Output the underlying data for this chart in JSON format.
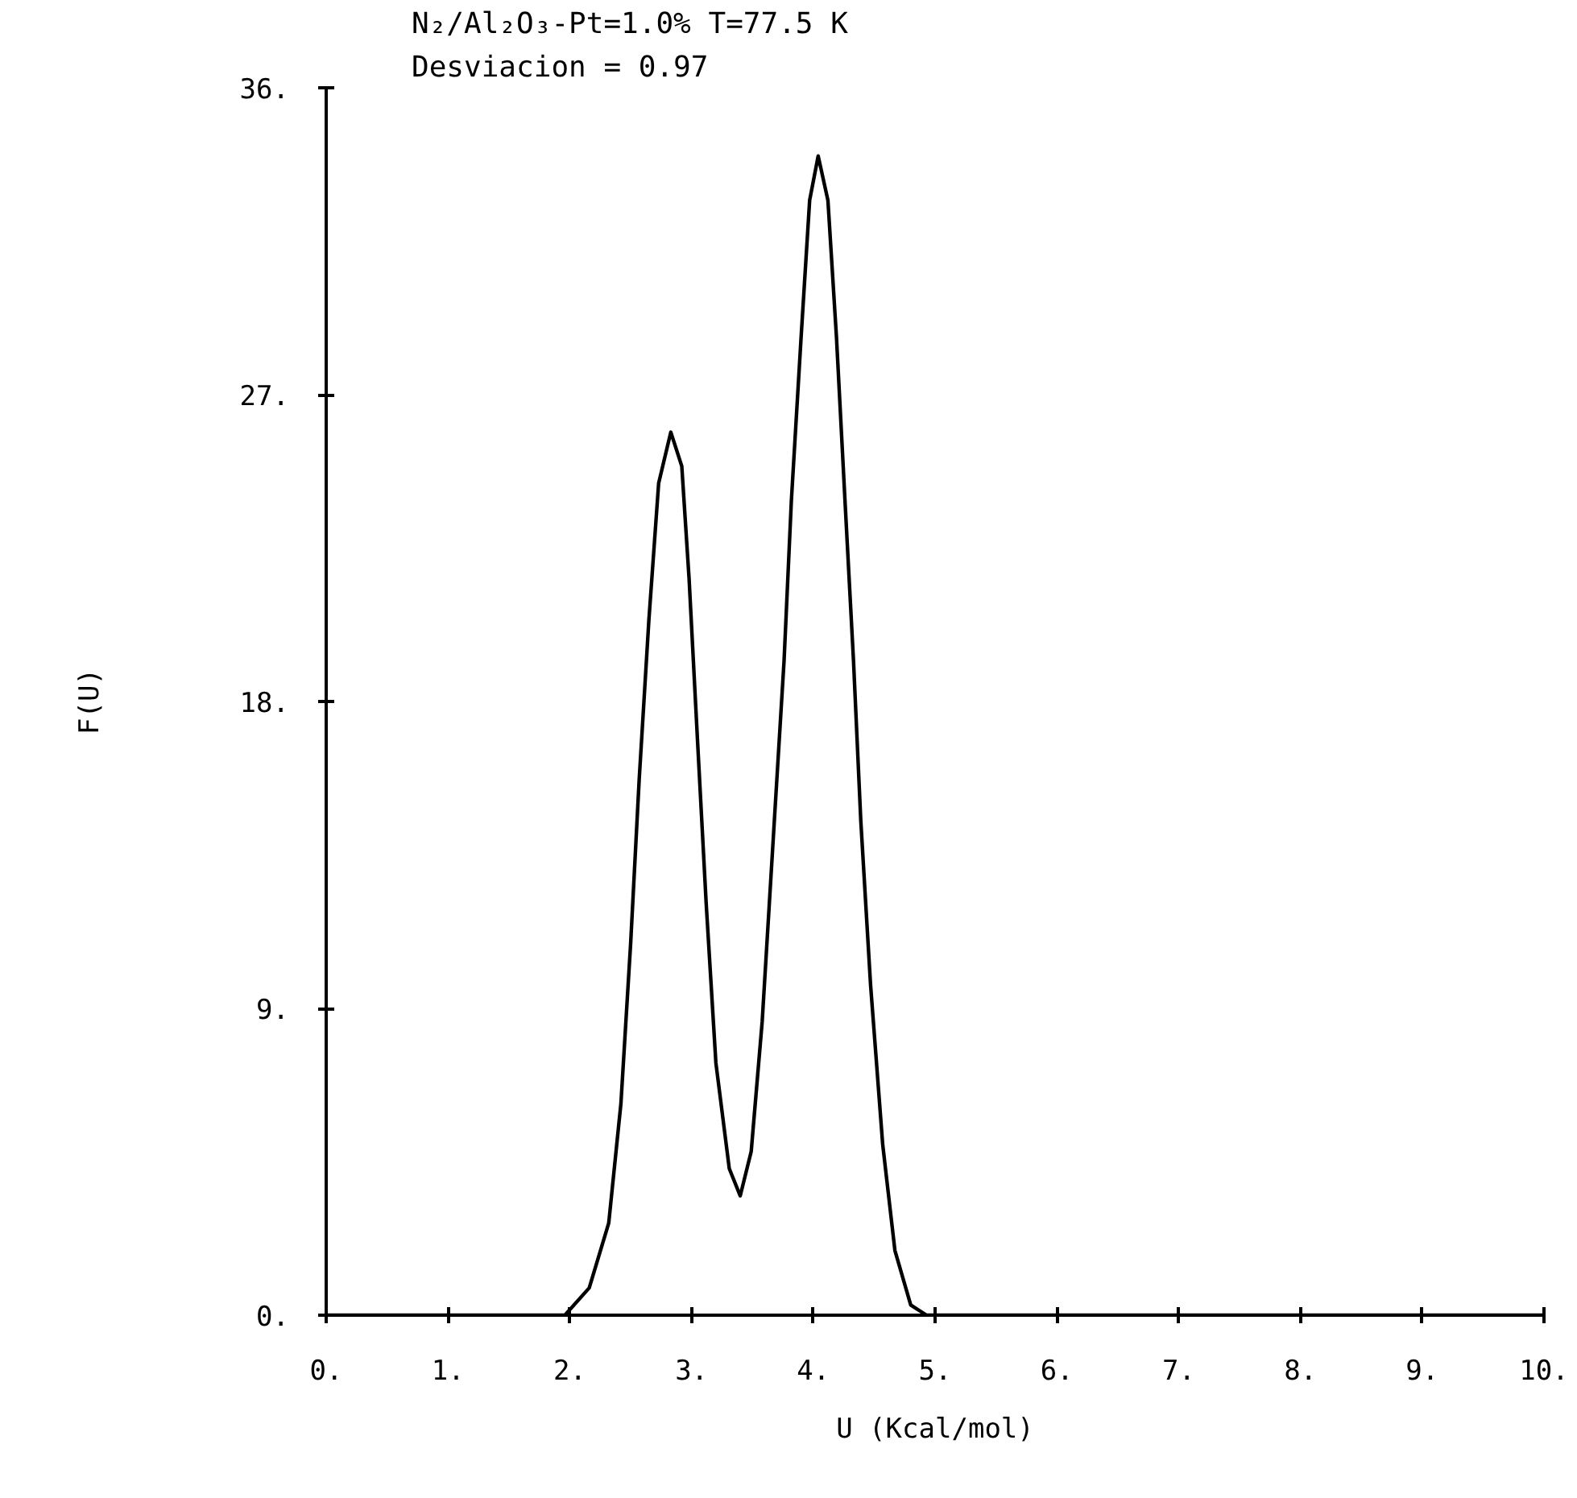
{
  "chart_data": {
    "type": "line",
    "title": "N₂/Al₂O₃-Pt=1.0% T=77.5 K",
    "annotations": [
      "Desviacion = 0.97"
    ],
    "xlabel": "U (Kcal/mol)",
    "ylabel": "F(U)",
    "xlim": [
      0,
      10
    ],
    "ylim": [
      0,
      36
    ],
    "xticks": [
      {
        "value": 0,
        "label": "0."
      },
      {
        "value": 1,
        "label": "1."
      },
      {
        "value": 2,
        "label": "2."
      },
      {
        "value": 3,
        "label": "3."
      },
      {
        "value": 4,
        "label": "4."
      },
      {
        "value": 5,
        "label": "5."
      },
      {
        "value": 6,
        "label": "6."
      },
      {
        "value": 7,
        "label": "7."
      },
      {
        "value": 8,
        "label": "8."
      },
      {
        "value": 9,
        "label": "9."
      },
      {
        "value": 10,
        "label": "10."
      }
    ],
    "yticks": [
      {
        "value": 0,
        "label": "0."
      },
      {
        "value": 9,
        "label": "9."
      },
      {
        "value": 18,
        "label": "18."
      },
      {
        "value": 27,
        "label": "27."
      },
      {
        "value": 36,
        "label": "36."
      }
    ],
    "grid": false,
    "marker": "none",
    "line_style": "solid",
    "series": [
      {
        "color": "#000000",
        "x": [
          0,
          1.96,
          2.16,
          2.32,
          2.42,
          2.5,
          2.57,
          2.65,
          2.73,
          2.83,
          2.92,
          2.98,
          3.05,
          3.12,
          3.2,
          3.31,
          3.4,
          3.49,
          3.58,
          3.68,
          3.76,
          3.82,
          3.9,
          3.97,
          4.04,
          4.12,
          4.19,
          4.26,
          4.33,
          4.39,
          4.47,
          4.57,
          4.67,
          4.8,
          4.93,
          10
        ],
        "values": [
          0,
          0,
          0.8,
          2.7,
          6.2,
          10.9,
          15.7,
          20.4,
          24.4,
          25.9,
          24.9,
          21.6,
          16.8,
          12.1,
          7.4,
          4.3,
          3.5,
          4.8,
          8.6,
          14.5,
          19.2,
          23.9,
          28.7,
          32.7,
          34.0,
          32.7,
          28.7,
          23.9,
          19.2,
          14.5,
          9.7,
          5.0,
          1.9,
          0.3,
          0,
          0
        ]
      }
    ]
  }
}
